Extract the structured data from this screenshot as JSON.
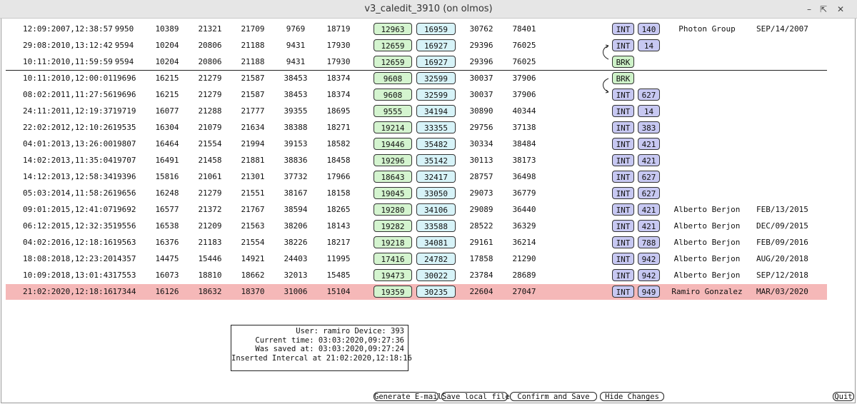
{
  "window": {
    "title": "v3_caledit_3910 (on olmos)"
  },
  "rows": [
    {
      "date": "12:09:2007,12:38:57",
      "n": [
        "9950",
        "10389",
        "21321",
        "21709",
        "9769",
        "18719"
      ],
      "g": "12963",
      "b": "16959",
      "m": [
        "30762",
        "78401"
      ],
      "tag": "INT",
      "code": "140",
      "person": "Photon Group",
      "when": "SEP/14/2007"
    },
    {
      "date": "29:08:2010,13:12:42",
      "n": [
        "9594",
        "10204",
        "20806",
        "21188",
        "9431",
        "17930"
      ],
      "g": "12659",
      "b": "16927",
      "m": [
        "29396",
        "76025"
      ],
      "tag": "INT",
      "code": "14",
      "person": "",
      "when": ""
    },
    {
      "date": "10:11:2010,11:59:59",
      "n": [
        "9594",
        "10204",
        "20806",
        "21188",
        "9431",
        "17930"
      ],
      "g": "12659",
      "b": "16927",
      "m": [
        "29396",
        "76025"
      ],
      "tag": "BRK",
      "code": "",
      "person": "",
      "when": ""
    },
    {
      "date": "10:11:2010,12:00:01",
      "n": [
        "19696",
        "16215",
        "21279",
        "21587",
        "38453",
        "18374"
      ],
      "g": "9608",
      "b": "32599",
      "m": [
        "30037",
        "37906"
      ],
      "tag": "BRK",
      "code": "",
      "person": "",
      "when": ""
    },
    {
      "date": "08:02:2011,11:27:56",
      "n": [
        "19696",
        "16215",
        "21279",
        "21587",
        "38453",
        "18374"
      ],
      "g": "9608",
      "b": "32599",
      "m": [
        "30037",
        "37906"
      ],
      "tag": "INT",
      "code": "627",
      "person": "",
      "when": ""
    },
    {
      "date": "24:11:2011,12:19:37",
      "n": [
        "19719",
        "16077",
        "21288",
        "21777",
        "39355",
        "18695"
      ],
      "g": "9555",
      "b": "34194",
      "m": [
        "30890",
        "40344"
      ],
      "tag": "INT",
      "code": "14",
      "person": "",
      "when": ""
    },
    {
      "date": "22:02:2012,12:10:26",
      "n": [
        "19535",
        "16304",
        "21079",
        "21634",
        "38388",
        "18271"
      ],
      "g": "19214",
      "b": "33355",
      "m": [
        "29756",
        "37138"
      ],
      "tag": "INT",
      "code": "383",
      "person": "",
      "when": ""
    },
    {
      "date": "04:01:2013,13:26:00",
      "n": [
        "19807",
        "16464",
        "21554",
        "21994",
        "39153",
        "18582"
      ],
      "g": "19446",
      "b": "35482",
      "m": [
        "30334",
        "38484"
      ],
      "tag": "INT",
      "code": "421",
      "person": "",
      "when": ""
    },
    {
      "date": "14:02:2013,11:35:04",
      "n": [
        "19707",
        "16491",
        "21458",
        "21881",
        "38836",
        "18458"
      ],
      "g": "19296",
      "b": "35142",
      "m": [
        "30113",
        "38173"
      ],
      "tag": "INT",
      "code": "421",
      "person": "",
      "when": ""
    },
    {
      "date": "14:12:2013,12:58:34",
      "n": [
        "19396",
        "15816",
        "21061",
        "21301",
        "37732",
        "17966"
      ],
      "g": "18643",
      "b": "32417",
      "m": [
        "28757",
        "36498"
      ],
      "tag": "INT",
      "code": "627",
      "person": "",
      "when": ""
    },
    {
      "date": "05:03:2014,11:58:26",
      "n": [
        "19656",
        "16248",
        "21279",
        "21551",
        "38167",
        "18158"
      ],
      "g": "19045",
      "b": "33050",
      "m": [
        "29073",
        "36779"
      ],
      "tag": "INT",
      "code": "627",
      "person": "",
      "when": ""
    },
    {
      "date": "09:01:2015,12:41:07",
      "n": [
        "19692",
        "16577",
        "21372",
        "21767",
        "38594",
        "18265"
      ],
      "g": "19280",
      "b": "34106",
      "m": [
        "29089",
        "36440"
      ],
      "tag": "INT",
      "code": "421",
      "person": "Alberto Berjon",
      "when": "FEB/13/2015"
    },
    {
      "date": "06:12:2015,12:32:35",
      "n": [
        "19556",
        "16538",
        "21209",
        "21563",
        "38206",
        "18143"
      ],
      "g": "19282",
      "b": "33588",
      "m": [
        "28522",
        "36329"
      ],
      "tag": "INT",
      "code": "421",
      "person": "Alberto Berjon",
      "when": "DEC/09/2015"
    },
    {
      "date": "04:02:2016,12:18:16",
      "n": [
        "19563",
        "16376",
        "21183",
        "21554",
        "38226",
        "18217"
      ],
      "g": "19218",
      "b": "34081",
      "m": [
        "29161",
        "36214"
      ],
      "tag": "INT",
      "code": "788",
      "person": "Alberto Berjon",
      "when": "FEB/09/2016"
    },
    {
      "date": "18:08:2018,12:23:20",
      "n": [
        "14357",
        "14475",
        "15446",
        "14921",
        "24403",
        "11995"
      ],
      "g": "17416",
      "b": "24782",
      "m": [
        "17858",
        "21290"
      ],
      "tag": "INT",
      "code": "942",
      "person": "Alberto Berjon",
      "when": "AUG/20/2018"
    },
    {
      "date": "10:09:2018,13:01:43",
      "n": [
        "17553",
        "16073",
        "18810",
        "18662",
        "32013",
        "15485"
      ],
      "g": "19473",
      "b": "30022",
      "m": [
        "23784",
        "28689"
      ],
      "tag": "INT",
      "code": "942",
      "person": "Alberto Berjon",
      "when": "SEP/12/2018"
    },
    {
      "date": "21:02:2020,12:18:16",
      "n": [
        "17344",
        "16126",
        "18632",
        "18370",
        "31006",
        "15104"
      ],
      "g": "19359",
      "b": "30235",
      "m": [
        "22604",
        "27047"
      ],
      "tag": "INT",
      "code": "949",
      "person": "Ramiro Gonzalez",
      "when": "MAR/03/2020",
      "highlight": true
    }
  ],
  "info": {
    "line1": "User: ramiro Device: 393",
    "line2": "Current time: 03:03:2020,09:27:36",
    "line3": "Was saved at: 03:03:2020,09:27:24",
    "line4": "Inserted Intercal at 21:02:2020,12:18:16"
  },
  "buttons": {
    "email": "Generate E-mail",
    "save_local": "Save local file",
    "confirm": "Confirm and Save",
    "hide": "Hide Changes",
    "quit": "Quit"
  }
}
